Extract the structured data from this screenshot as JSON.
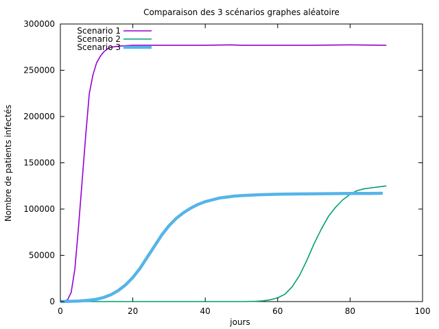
{
  "chart_data": {
    "type": "line",
    "title": "Comparaison des 3 scénarios graphes aléatoire",
    "xlabel": "jours",
    "ylabel": "Nombre de patients infectés",
    "xlim": [
      0,
      100
    ],
    "ylim": [
      0,
      300000
    ],
    "x_ticks": [
      0,
      20,
      40,
      60,
      80,
      100
    ],
    "y_ticks": [
      0,
      50000,
      100000,
      150000,
      200000,
      250000,
      300000
    ],
    "grid": false,
    "legend_position": "top-left",
    "series": [
      {
        "name": "Scenario 1",
        "color": "#9400d3",
        "points": [
          [
            0,
            0
          ],
          [
            1,
            500
          ],
          [
            2,
            2000
          ],
          [
            3,
            10000
          ],
          [
            4,
            35000
          ],
          [
            5,
            80000
          ],
          [
            6,
            130000
          ],
          [
            7,
            180000
          ],
          [
            8,
            225000
          ],
          [
            9,
            245000
          ],
          [
            10,
            258000
          ],
          [
            11,
            265000
          ],
          [
            12,
            270000
          ],
          [
            13,
            273000
          ],
          [
            14,
            275000
          ],
          [
            16,
            276000
          ],
          [
            18,
            276500
          ],
          [
            20,
            277000
          ],
          [
            30,
            277000
          ],
          [
            40,
            277000
          ],
          [
            47,
            277500
          ],
          [
            50,
            277000
          ],
          [
            60,
            277000
          ],
          [
            70,
            277000
          ],
          [
            80,
            277500
          ],
          [
            90,
            277000
          ]
        ]
      },
      {
        "name": "Scenario 2",
        "color": "#009e73",
        "points": [
          [
            0,
            0
          ],
          [
            10,
            0
          ],
          [
            20,
            0
          ],
          [
            30,
            0
          ],
          [
            40,
            0
          ],
          [
            50,
            0
          ],
          [
            54,
            300
          ],
          [
            56,
            800
          ],
          [
            58,
            2000
          ],
          [
            60,
            4000
          ],
          [
            62,
            8000
          ],
          [
            64,
            16000
          ],
          [
            66,
            28000
          ],
          [
            68,
            44000
          ],
          [
            70,
            62000
          ],
          [
            72,
            78000
          ],
          [
            74,
            92000
          ],
          [
            76,
            102000
          ],
          [
            78,
            110000
          ],
          [
            80,
            116000
          ],
          [
            82,
            120000
          ],
          [
            84,
            122000
          ],
          [
            86,
            123000
          ],
          [
            88,
            124000
          ],
          [
            90,
            125000
          ]
        ]
      },
      {
        "name": "Scenario 3",
        "color": "#56b4e9",
        "points": [
          [
            0,
            0
          ],
          [
            5,
            500
          ],
          [
            8,
            1500
          ],
          [
            10,
            2500
          ],
          [
            12,
            4500
          ],
          [
            14,
            7500
          ],
          [
            16,
            12000
          ],
          [
            18,
            18000
          ],
          [
            20,
            26000
          ],
          [
            22,
            36000
          ],
          [
            24,
            48000
          ],
          [
            26,
            60000
          ],
          [
            28,
            72000
          ],
          [
            30,
            82000
          ],
          [
            32,
            90000
          ],
          [
            34,
            96000
          ],
          [
            36,
            101000
          ],
          [
            38,
            105000
          ],
          [
            40,
            108000
          ],
          [
            42,
            110000
          ],
          [
            44,
            112000
          ],
          [
            46,
            113000
          ],
          [
            48,
            114000
          ],
          [
            50,
            114500
          ],
          [
            55,
            115500
          ],
          [
            60,
            116000
          ],
          [
            65,
            116300
          ],
          [
            70,
            116500
          ],
          [
            75,
            116700
          ],
          [
            80,
            116800
          ],
          [
            85,
            116900
          ],
          [
            89,
            117000
          ]
        ]
      }
    ]
  }
}
